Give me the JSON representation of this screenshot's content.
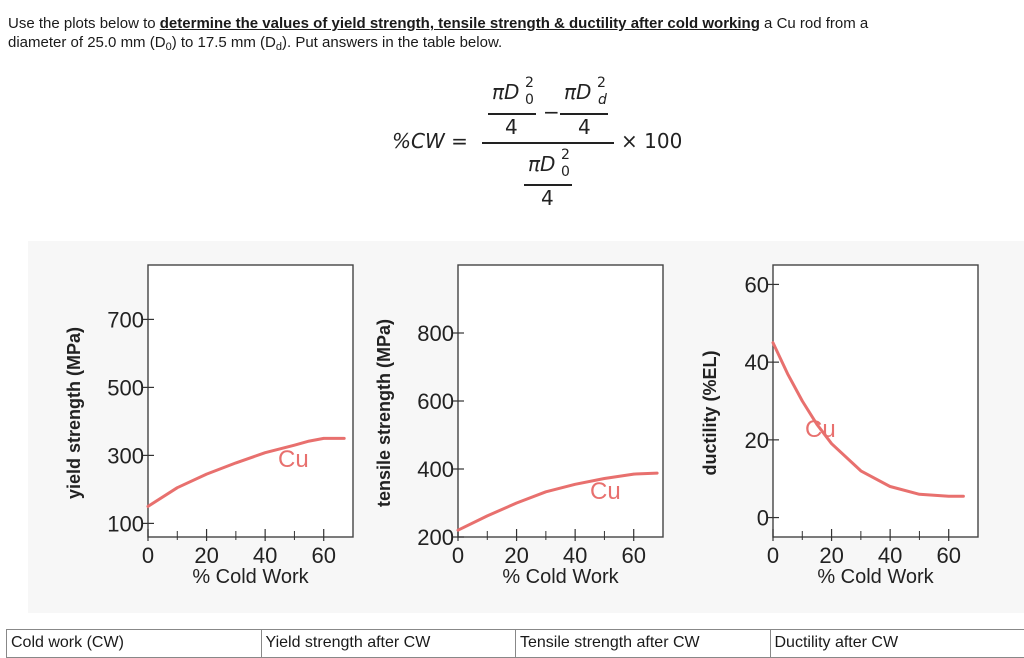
{
  "instructions": {
    "prefix": "Use the plots below to ",
    "emphasis": "determine the values of yield strength, tensile strength & ductility after cold working",
    "middle": " a Cu rod from a",
    "line2_a": "diameter of 25.0 mm (D",
    "sub0": "0",
    "line2_b": ") to 17.5 mm (D",
    "subd": "d",
    "line2_c": "). Put answers in the table below."
  },
  "formula": {
    "lhs": "%CW =",
    "pi_d0": "πD",
    "pi_dd": "πD",
    "exp": "2",
    "sub0": "0",
    "subd": "d",
    "four": "4",
    "minus": "−",
    "times": "× 100"
  },
  "colors": {
    "curve": "#e8706e",
    "axis": "#333333",
    "frame": "#444444"
  },
  "chart_data": [
    {
      "type": "line",
      "xlabel": "% Cold Work",
      "ylabel": "yield strength (MPa)",
      "x_ticks": [
        0,
        20,
        40,
        60
      ],
      "y_ticks": [
        100,
        300,
        500,
        700
      ],
      "xlim": [
        0,
        70
      ],
      "ylim": [
        60,
        860
      ],
      "grid": false,
      "series": [
        {
          "name": "Cu",
          "x": [
            0,
            10,
            20,
            30,
            40,
            50,
            55,
            60,
            67
          ],
          "y": [
            150,
            205,
            245,
            278,
            308,
            330,
            342,
            350,
            350
          ]
        }
      ]
    },
    {
      "type": "line",
      "xlabel": "% Cold Work",
      "ylabel": "tensile strength (MPa)",
      "x_ticks": [
        0,
        20,
        40,
        60
      ],
      "y_ticks": [
        200,
        400,
        600,
        800
      ],
      "xlim": [
        0,
        70
      ],
      "ylim": [
        200,
        1000
      ],
      "grid": false,
      "series": [
        {
          "name": "Cu",
          "x": [
            0,
            10,
            20,
            30,
            40,
            50,
            60,
            68
          ],
          "y": [
            220,
            262,
            300,
            333,
            355,
            372,
            385,
            388
          ]
        }
      ]
    },
    {
      "type": "line",
      "xlabel": "% Cold Work",
      "ylabel": "ductility (%EL)",
      "x_ticks": [
        0,
        20,
        40,
        60
      ],
      "y_ticks": [
        0,
        20,
        40,
        60
      ],
      "xlim": [
        0,
        70
      ],
      "ylim": [
        -5,
        65
      ],
      "grid": false,
      "series": [
        {
          "name": "Cu",
          "x": [
            0,
            5,
            10,
            15,
            20,
            30,
            40,
            50,
            60,
            65
          ],
          "y": [
            45,
            37,
            30,
            24,
            19,
            12,
            8,
            6,
            5.5,
            5.5
          ]
        }
      ]
    }
  ],
  "table": {
    "headers": [
      "Cold work (CW)",
      "Yield strength after CW",
      "Tensile strength after CW",
      "Ductility after CW"
    ]
  }
}
